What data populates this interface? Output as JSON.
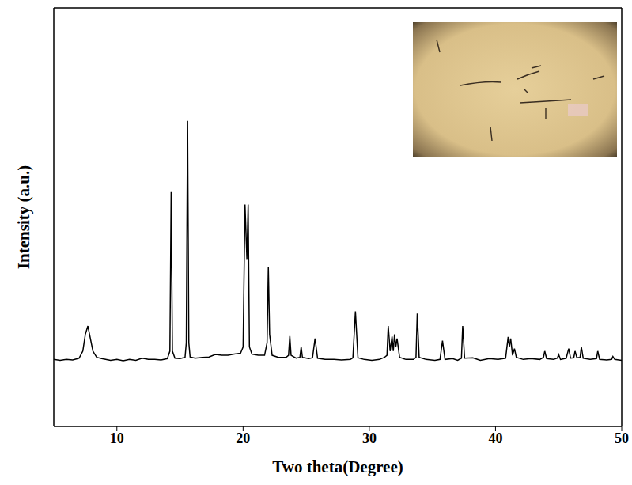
{
  "chart_data": {
    "type": "line",
    "x_label": "Two theta(Degree)",
    "y_label": "Intensity (a.u.)",
    "color": "#000000",
    "xlim": [
      5,
      50
    ],
    "xticks": [
      10,
      20,
      30,
      40,
      50
    ],
    "ylim": [
      0,
      100
    ],
    "tick_labels": "x",
    "grid": false,
    "x": [
      5.0,
      5.5,
      6.0,
      6.5,
      7.0,
      7.3,
      7.5,
      7.7,
      7.9,
      8.1,
      8.4,
      8.8,
      9.5,
      10.0,
      10.5,
      11.0,
      11.5,
      12.0,
      12.5,
      13.0,
      13.5,
      14.0,
      14.2,
      14.3,
      14.4,
      14.6,
      15.0,
      15.4,
      15.5,
      15.6,
      15.7,
      15.8,
      16.2,
      16.8,
      17.3,
      17.8,
      18.3,
      18.8,
      19.3,
      19.8,
      20.0,
      20.15,
      20.3,
      20.4,
      20.5,
      20.7,
      21.2,
      21.7,
      21.9,
      22.0,
      22.1,
      22.3,
      22.8,
      23.4,
      23.6,
      23.7,
      23.8,
      24.2,
      24.5,
      24.6,
      24.7,
      25.2,
      25.5,
      25.7,
      25.9,
      26.5,
      27.2,
      27.8,
      28.5,
      28.7,
      28.9,
      29.1,
      29.6,
      30.2,
      30.8,
      31.2,
      31.4,
      31.5,
      31.65,
      31.8,
      31.9,
      32.0,
      32.1,
      32.2,
      32.4,
      32.9,
      33.5,
      33.7,
      33.8,
      33.95,
      34.5,
      35.2,
      35.6,
      35.8,
      36.0,
      36.6,
      37.0,
      37.3,
      37.4,
      37.55,
      38.2,
      38.8,
      39.5,
      40.2,
      40.8,
      41.0,
      41.1,
      41.2,
      41.35,
      41.5,
      41.65,
      42.2,
      42.8,
      43.5,
      43.8,
      43.9,
      44.05,
      44.6,
      44.9,
      45.0,
      45.15,
      45.6,
      45.8,
      45.95,
      46.2,
      46.3,
      46.45,
      46.7,
      46.8,
      46.95,
      47.5,
      48.0,
      48.1,
      48.25,
      48.8,
      49.2,
      49.3,
      49.45,
      50.0
    ],
    "values": [
      16,
      15.8,
      16,
      15.9,
      16.3,
      18,
      22,
      24,
      21,
      18,
      16.5,
      16.2,
      15.8,
      16,
      15.7,
      16,
      15.8,
      16.3,
      16,
      16,
      15.9,
      16.2,
      18,
      56,
      18,
      16.3,
      16.2,
      16.5,
      20,
      73,
      20,
      16.6,
      16.3,
      16.5,
      16.6,
      17.2,
      17,
      17,
      17.3,
      17.5,
      19,
      53,
      40,
      53,
      19,
      17.3,
      17,
      17,
      20,
      38,
      22,
      17,
      16.5,
      16.5,
      17,
      21.6,
      17,
      16.3,
      16.5,
      19,
      16.5,
      16.2,
      16.4,
      21,
      16.3,
      16,
      16,
      15.9,
      16,
      16.4,
      27.5,
      16.4,
      16,
      15.8,
      16,
      16.5,
      17,
      24,
      18,
      21.5,
      18,
      22,
      19,
      21,
      16.5,
      16,
      16,
      16.5,
      27,
      16.5,
      16,
      15.8,
      16,
      20.5,
      16,
      16.2,
      15.8,
      16.3,
      24,
      16.3,
      16.4,
      15.8,
      16.2,
      16,
      16.3,
      21.4,
      19,
      21,
      17,
      18.6,
      16.5,
      16,
      16.2,
      16,
      16.5,
      18,
      16.2,
      16,
      16.3,
      17.2,
      16,
      16.3,
      18.6,
      16.3,
      16.4,
      18,
      16.4,
      16.5,
      19,
      16.3,
      16,
      16.2,
      18,
      16,
      15.9,
      16,
      16.7,
      16,
      15.8
    ]
  }
}
